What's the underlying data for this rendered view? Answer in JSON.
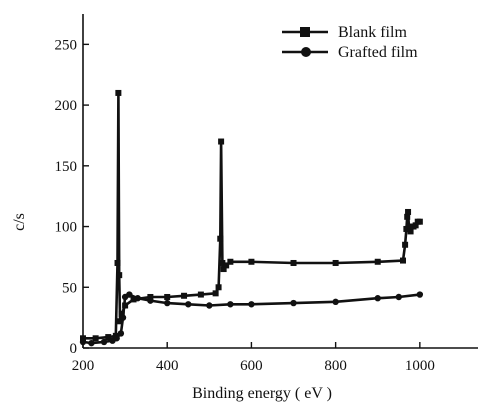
{
  "chart_data": {
    "type": "line",
    "title": "",
    "xlabel": "Binding energy ( eV )",
    "ylabel": "c/s",
    "xlim": [
      200,
      1150
    ],
    "ylim": [
      0,
      275
    ],
    "xticks": [
      200,
      400,
      600,
      800,
      1000
    ],
    "yticks": [
      0,
      50,
      100,
      150,
      200,
      250
    ],
    "legend_position": "top-right",
    "grid": false,
    "series": [
      {
        "name": "Blank film",
        "marker": "square",
        "x": [
          200,
          230,
          260,
          278,
          282,
          284,
          286,
          288,
          292,
          300,
          320,
          360,
          400,
          440,
          480,
          515,
          522,
          526,
          528,
          531,
          534,
          540,
          550,
          600,
          700,
          800,
          900,
          960,
          965,
          968,
          970,
          972,
          974,
          978,
          985,
          990,
          995,
          1000
        ],
        "values": [
          8,
          8,
          9,
          10,
          70,
          210,
          60,
          22,
          28,
          35,
          40,
          42,
          42,
          43,
          44,
          45,
          50,
          90,
          170,
          70,
          65,
          68,
          71,
          71,
          70,
          70,
          71,
          72,
          85,
          98,
          108,
          112,
          100,
          96,
          100,
          101,
          104,
          104
        ]
      },
      {
        "name": "Grafted film",
        "marker": "circle",
        "x": [
          200,
          220,
          250,
          270,
          280,
          290,
          295,
          300,
          310,
          330,
          360,
          400,
          450,
          500,
          550,
          600,
          700,
          800,
          900,
          950,
          1000
        ],
        "values": [
          5,
          4,
          5,
          6,
          8,
          12,
          25,
          42,
          44,
          41,
          39,
          37,
          36,
          35,
          36,
          36,
          37,
          38,
          41,
          42,
          44
        ]
      }
    ]
  }
}
